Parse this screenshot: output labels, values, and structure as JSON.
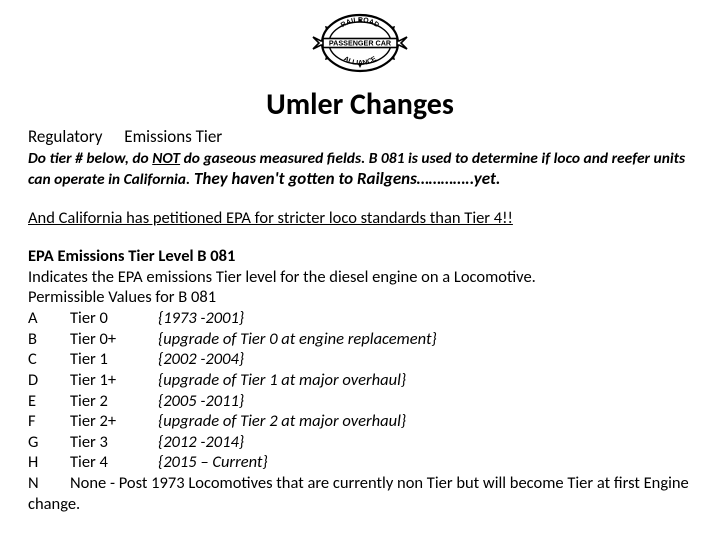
{
  "logo": {
    "top_arc_text": "RAILROAD",
    "banner_text": "PASSENGER CAR",
    "bottom_arc_text": "ALLIANCE",
    "stroke": "#000000",
    "fill": "#ffffff"
  },
  "title": "Umler Changes",
  "subhead": {
    "regulatory": "Regulatory",
    "emissions": "Emissions Tier"
  },
  "instruction": {
    "part1": "Do tier # below, ",
    "part2_prefix": "do ",
    "not": "NOT",
    "part2_suffix": " do gaseous measured fields.  B 081 is used to determine if loco and reefer units can operate in California.",
    "railgens": "   They haven't gotten to Railgens…………..yet."
  },
  "petition": "And California has petitioned EPA for stricter loco standards than Tier 4!!",
  "body": {
    "header": "EPA Emissions Tier Level B 081",
    "line2": "Indicates the EPA emissions Tier level for the diesel engine on a Locomotive.",
    "line3": "Permissible Values for B 081"
  },
  "tiers": [
    {
      "code": "A",
      "tier": "Tier 0",
      "desc": "{1973 -2001}"
    },
    {
      "code": "B",
      "tier": "Tier 0+",
      "desc": "{upgrade of Tier 0 at engine replacement}"
    },
    {
      "code": "C",
      "tier": "Tier 1",
      "desc": "{2002 -2004}"
    },
    {
      "code": "D",
      "tier": "Tier 1+",
      "desc": "{upgrade of Tier 1 at major overhaul}"
    },
    {
      "code": "E",
      "tier": "Tier 2",
      "desc": "{2005 -2011}"
    },
    {
      "code": "F",
      "tier": "Tier 2+",
      "desc": "{upgrade of Tier 2 at major overhaul}"
    },
    {
      "code": "G",
      "tier": "Tier 3",
      "desc": "{2012 -2014}"
    },
    {
      "code": "H",
      "tier": "Tier 4",
      "desc": "{2015 – Current}"
    }
  ],
  "last_row": {
    "code": "N",
    "text": "None - Post 1973 Locomotives that are currently non Tier but will become Tier at first Engine change."
  },
  "colors": {
    "background": "#ffffff",
    "text": "#000000"
  },
  "typography": {
    "base_pt": 12,
    "title_pt": 22,
    "font_family": "Calibri"
  }
}
